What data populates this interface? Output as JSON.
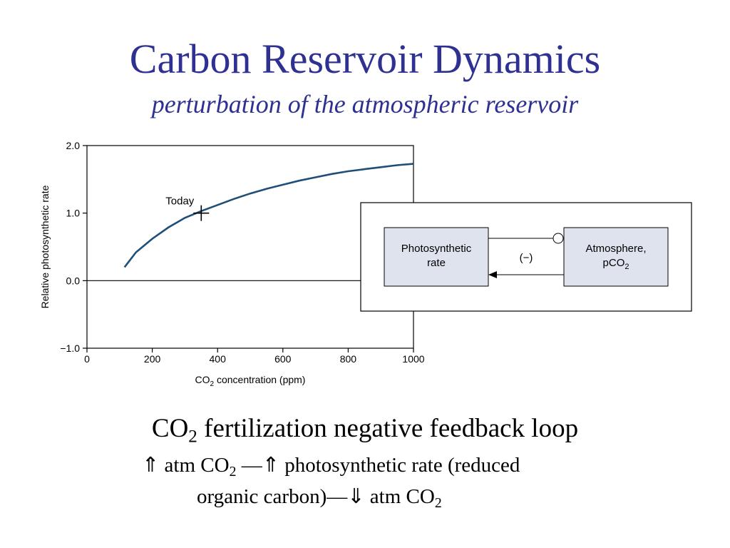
{
  "slide": {
    "title": "Carbon Reservoir Dynamics",
    "subtitle": "perturbation of the atmospheric reservoir"
  },
  "chart_data": {
    "type": "line",
    "ylabel": "Relative photosynthetic rate",
    "xlabel_main": "CO",
    "xlabel_sub": "2",
    "xlabel_rest": " concentration (ppm)",
    "xlim": [
      0,
      1000
    ],
    "ylim": [
      -1.0,
      2.0
    ],
    "x_ticks": [
      0,
      200,
      400,
      600,
      800,
      1000
    ],
    "x_tick_labels": [
      "0",
      "200",
      "400",
      "600",
      "800",
      "1000"
    ],
    "y_ticks": [
      -1.0,
      0.0,
      1.0,
      2.0
    ],
    "y_tick_labels": [
      "−1.0",
      "0.0",
      "1.0",
      "2.0"
    ],
    "reference_line_y": 0.0,
    "series": [
      {
        "color": "#1f4e79",
        "x": [
          115,
          150,
          200,
          250,
          300,
          350,
          400,
          450,
          500,
          550,
          600,
          650,
          700,
          750,
          800,
          850,
          900,
          950,
          1000
        ],
        "y": [
          0.2,
          0.42,
          0.62,
          0.79,
          0.93,
          1.03,
          1.12,
          1.21,
          1.29,
          1.36,
          1.42,
          1.48,
          1.53,
          1.58,
          1.62,
          1.65,
          1.68,
          1.71,
          1.73
        ]
      }
    ],
    "annotation": {
      "text": "Today",
      "x": 350,
      "y": 1.0
    }
  },
  "diagram": {
    "left_box": [
      "Photosynthetic",
      "rate"
    ],
    "right_box_line1": "Atmosphere,",
    "right_box_line2_main": "pCO",
    "right_box_line2_sub": "2",
    "sign": "(−)"
  },
  "caption": {
    "main_a": "CO",
    "main_sub": "2",
    "main_b": " fertilization negative feedback loop",
    "line2_a": "⇑ atm CO",
    "line2_sub": "2",
    "line2_b": " —⇑ photosynthetic rate (reduced",
    "line3_a": "organic carbon)—⇓ atm CO",
    "line3_sub": "2"
  }
}
